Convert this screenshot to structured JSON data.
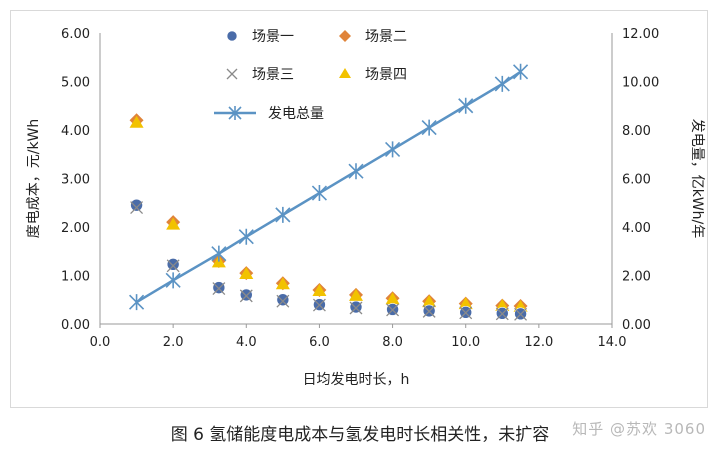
{
  "caption": "图 6 氢储能度电成本与氢发电时长相关性，未扩容",
  "watermark": "知乎 @苏欢 3060",
  "colors": {
    "s1": "#4a6ca8",
    "s2": "#e0843a",
    "s3": "#8a8a8a",
    "s4": "#f2c200",
    "total": "#5b93c4",
    "axis": "#9a9a9a",
    "text": "#222222"
  },
  "chart_data": {
    "type": "scatter",
    "xlabel": "日均发电时长，h",
    "ylabel": "度电成本，元/kWh",
    "y2label": "发电量，亿kWh/年",
    "xlim": [
      0,
      14
    ],
    "ylim": [
      0,
      6
    ],
    "y2lim": [
      0,
      12
    ],
    "x_ticks": [
      "0.0",
      "2.0",
      "4.0",
      "6.0",
      "8.0",
      "10.0",
      "12.0",
      "14.0"
    ],
    "y_ticks": [
      "0.00",
      "1.00",
      "2.00",
      "3.00",
      "4.00",
      "5.00",
      "6.00"
    ],
    "y2_ticks": [
      "0.00",
      "2.00",
      "4.00",
      "6.00",
      "8.00",
      "10.00",
      "12.00"
    ],
    "grid": false,
    "legend_position": "top-center",
    "series": [
      {
        "name": "场景一",
        "marker": "circle",
        "axis": "left",
        "color_key": "s1",
        "x": [
          1,
          2,
          3.25,
          4,
          5,
          6,
          7,
          8,
          9,
          10,
          11,
          11.5
        ],
        "y": [
          2.45,
          1.23,
          0.75,
          0.6,
          0.5,
          0.4,
          0.35,
          0.3,
          0.27,
          0.24,
          0.22,
          0.21
        ]
      },
      {
        "name": "场景二",
        "marker": "diamond",
        "axis": "left",
        "color_key": "s2",
        "x": [
          1,
          2,
          3.25,
          4,
          5,
          6,
          7,
          8,
          9,
          10,
          11,
          11.5
        ],
        "y": [
          4.2,
          2.1,
          1.3,
          1.05,
          0.84,
          0.7,
          0.6,
          0.53,
          0.47,
          0.42,
          0.38,
          0.37
        ]
      },
      {
        "name": "场景三",
        "marker": "x",
        "axis": "left",
        "color_key": "s3",
        "x": [
          1,
          2,
          3.25,
          4,
          5,
          6,
          7,
          8,
          9,
          10,
          11,
          11.5
        ],
        "y": [
          2.4,
          1.2,
          0.73,
          0.58,
          0.47,
          0.39,
          0.33,
          0.29,
          0.26,
          0.23,
          0.21,
          0.2
        ]
      },
      {
        "name": "场景四",
        "marker": "triangle",
        "axis": "left",
        "color_key": "s4",
        "x": [
          1,
          2,
          3.25,
          4,
          5,
          6,
          7,
          8,
          9,
          10,
          11,
          11.5
        ],
        "y": [
          4.15,
          2.05,
          1.27,
          1.03,
          0.82,
          0.68,
          0.58,
          0.51,
          0.45,
          0.41,
          0.37,
          0.35
        ]
      },
      {
        "name": "发电总量",
        "marker": "star-line",
        "axis": "right",
        "color_key": "total",
        "x": [
          1,
          2,
          3.25,
          4,
          5,
          6,
          7,
          8,
          9,
          10,
          11,
          11.5
        ],
        "y": [
          0.9,
          1.8,
          2.9,
          3.6,
          4.5,
          5.4,
          6.3,
          7.2,
          8.1,
          9.0,
          9.9,
          10.4
        ]
      }
    ]
  }
}
